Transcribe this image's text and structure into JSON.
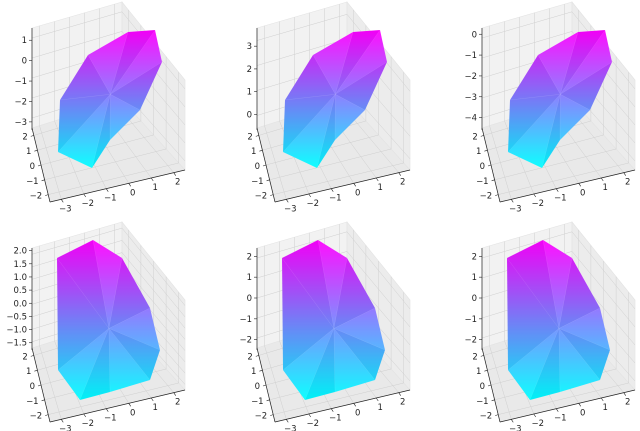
{
  "figure": {
    "colormap": {
      "name": "cool",
      "low": "#00ffff",
      "high": "#ff00ff"
    },
    "pane_color": "#f2f2f2",
    "grid_color": "#cfcfcf"
  },
  "chart_data": [
    {
      "type": "surface3d",
      "title": "",
      "xlabel": "",
      "ylabel": "",
      "zlabel": "",
      "x_ticks": [
        "−3",
        "−2",
        "−1",
        "0",
        "1",
        "2"
      ],
      "y_ticks": [
        "−2",
        "−1",
        "0",
        "1",
        "2"
      ],
      "z_ticks": [
        "−3",
        "−2",
        "−1",
        "0",
        "1"
      ],
      "z_range": [
        -3.3,
        1.6
      ],
      "grid": true
    },
    {
      "type": "surface3d",
      "title": "",
      "xlabel": "",
      "ylabel": "",
      "zlabel": "",
      "x_ticks": [
        "−3",
        "−2",
        "−1",
        "0",
        "1",
        "2"
      ],
      "y_ticks": [
        "−2",
        "−1",
        "0",
        "1",
        "2"
      ],
      "z_ticks": [
        "0",
        "1",
        "2",
        "3"
      ],
      "z_range": [
        -0.6,
        3.8
      ],
      "grid": true
    },
    {
      "type": "surface3d",
      "title": "",
      "xlabel": "",
      "ylabel": "",
      "zlabel": "",
      "x_ticks": [
        "−3",
        "−2",
        "−1",
        "0",
        "1",
        "2"
      ],
      "y_ticks": [
        "−2",
        "−1",
        "0",
        "1",
        "2"
      ],
      "z_ticks": [
        "−4",
        "−3",
        "−2",
        "−1",
        "0"
      ],
      "z_range": [
        -4.5,
        0.3
      ],
      "grid": true
    },
    {
      "type": "surface3d",
      "title": "",
      "xlabel": "",
      "ylabel": "",
      "zlabel": "",
      "x_ticks": [
        "−3",
        "−2",
        "−1",
        "0",
        "1",
        "2"
      ],
      "y_ticks": [
        "−2",
        "−1",
        "0",
        "1",
        "2"
      ],
      "z_ticks": [
        "−1.5",
        "−1.0",
        "−0.5",
        "0.0",
        "0.5",
        "1.0",
        "1.5",
        "2.0"
      ],
      "z_range": [
        -1.7,
        2.1
      ],
      "grid": true
    },
    {
      "type": "surface3d",
      "title": "",
      "xlabel": "",
      "ylabel": "",
      "zlabel": "",
      "x_ticks": [
        "−3",
        "−2",
        "−1",
        "0",
        "1",
        "2"
      ],
      "y_ticks": [
        "−2",
        "−1",
        "0",
        "1",
        "2"
      ],
      "z_ticks": [
        "−2",
        "−1",
        "0",
        "1",
        "2"
      ],
      "z_range": [
        -2.4,
        2.4
      ],
      "grid": true
    },
    {
      "type": "surface3d",
      "title": "",
      "xlabel": "",
      "ylabel": "",
      "zlabel": "",
      "x_ticks": [
        "−3",
        "−2",
        "−1",
        "0",
        "1",
        "2"
      ],
      "y_ticks": [
        "−2",
        "−1",
        "0",
        "1",
        "2"
      ],
      "z_ticks": [
        "−2",
        "−1",
        "0",
        "1",
        "2"
      ],
      "z_range": [
        -2.4,
        2.4
      ],
      "grid": true
    }
  ]
}
